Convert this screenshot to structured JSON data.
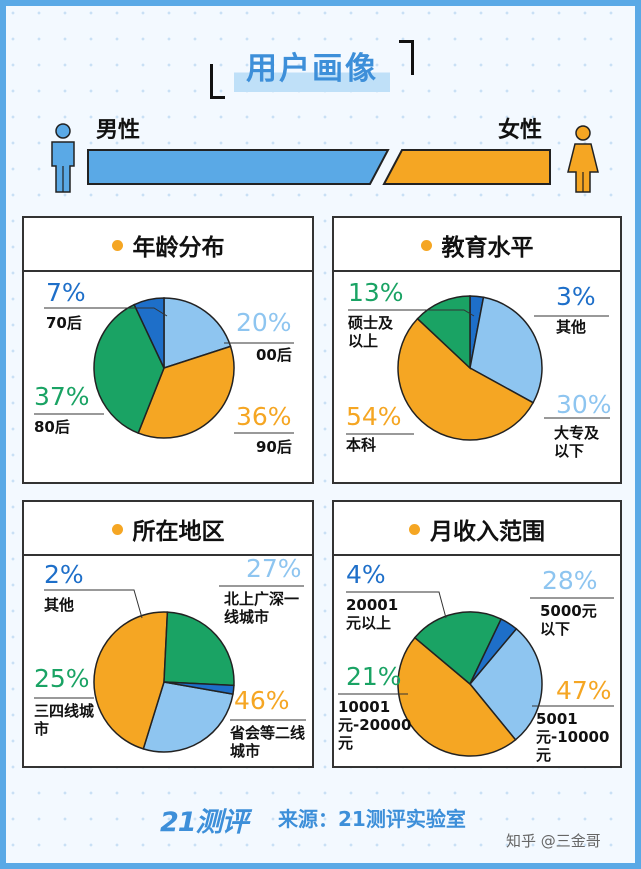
{
  "title": "用户画像",
  "gender": {
    "male_label": "男性",
    "female_label": "女性",
    "male_color": "#5aa9e6",
    "female_color": "#f5a623"
  },
  "colors": {
    "light_blue": "#8ec5f0",
    "orange": "#f5a623",
    "green": "#1aa364",
    "dark_blue": "#1e6fc9"
  },
  "panels": {
    "age": {
      "title": "年龄分布"
    },
    "education": {
      "title": "教育水平"
    },
    "region": {
      "title": "所在地区"
    },
    "income": {
      "title": "月收入范围"
    }
  },
  "chart_data": [
    {
      "type": "pie",
      "title": "年龄分布",
      "slices": [
        {
          "label": "00后",
          "pct_text": "20%",
          "value": 20,
          "color": "#8ec5f0"
        },
        {
          "label": "90后",
          "pct_text": "36%",
          "value": 36,
          "color": "#f5a623"
        },
        {
          "label": "80后",
          "pct_text": "37%",
          "value": 37,
          "color": "#1aa364"
        },
        {
          "label": "70后",
          "pct_text": "7%",
          "value": 7,
          "color": "#1e6fc9"
        }
      ]
    },
    {
      "type": "pie",
      "title": "教育水平",
      "slices": [
        {
          "label": "其他",
          "pct_text": "3%",
          "value": 3,
          "color": "#1e6fc9"
        },
        {
          "label": "大专及以下",
          "pct_text": "30%",
          "value": 30,
          "color": "#8ec5f0"
        },
        {
          "label": "本科",
          "pct_text": "54%",
          "value": 54,
          "color": "#f5a623"
        },
        {
          "label": "硕士及以上",
          "pct_text": "13%",
          "value": 13,
          "color": "#1aa364"
        }
      ]
    },
    {
      "type": "pie",
      "title": "所在地区",
      "slices": [
        {
          "label": "北上广深一线城市",
          "pct_text": "27%",
          "value": 27,
          "color": "#8ec5f0"
        },
        {
          "label": "省会等二线城市",
          "pct_text": "46%",
          "value": 46,
          "color": "#f5a623"
        },
        {
          "label": "三四线城市",
          "pct_text": "25%",
          "value": 25,
          "color": "#1aa364"
        },
        {
          "label": "其他",
          "pct_text": "2%",
          "value": 2,
          "color": "#1e6fc9"
        }
      ]
    },
    {
      "type": "pie",
      "title": "月收入范围",
      "slices": [
        {
          "label": "5000元以下",
          "pct_text": "28%",
          "value": 28,
          "color": "#8ec5f0"
        },
        {
          "label": "5001元-10000元",
          "pct_text": "47%",
          "value": 47,
          "color": "#f5a623"
        },
        {
          "label": "10001元-20000元",
          "pct_text": "21%",
          "value": 21,
          "color": "#1aa364"
        },
        {
          "label": "20001元以上",
          "pct_text": "4%",
          "value": 4,
          "color": "#1e6fc9"
        }
      ]
    }
  ],
  "footer": {
    "logo": "21测评",
    "source": "来源：21测评实验室",
    "credit": "知乎 @三金哥"
  }
}
